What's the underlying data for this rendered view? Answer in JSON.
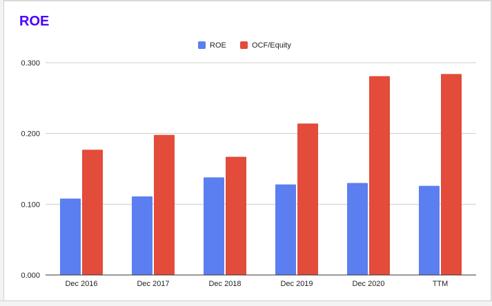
{
  "chart_data": {
    "type": "bar",
    "title": "ROE",
    "categories": [
      "Dec 2016",
      "Dec 2017",
      "Dec 2018",
      "Dec 2019",
      "Dec 2020",
      "TTM"
    ],
    "series": [
      {
        "name": "ROE",
        "color": "#5b7ff0",
        "values": [
          0.108,
          0.111,
          0.138,
          0.128,
          0.13,
          0.126
        ]
      },
      {
        "name": "OCF/Equity",
        "color": "#e34b3a",
        "values": [
          0.177,
          0.198,
          0.167,
          0.214,
          0.281,
          0.284
        ]
      }
    ],
    "ylim": [
      0,
      0.3
    ],
    "yticks": [
      "0.000",
      "0.100",
      "0.200",
      "0.300"
    ],
    "ytick_values": [
      0,
      0.1,
      0.2,
      0.3
    ],
    "grid": true,
    "legend_position": "top-center"
  }
}
